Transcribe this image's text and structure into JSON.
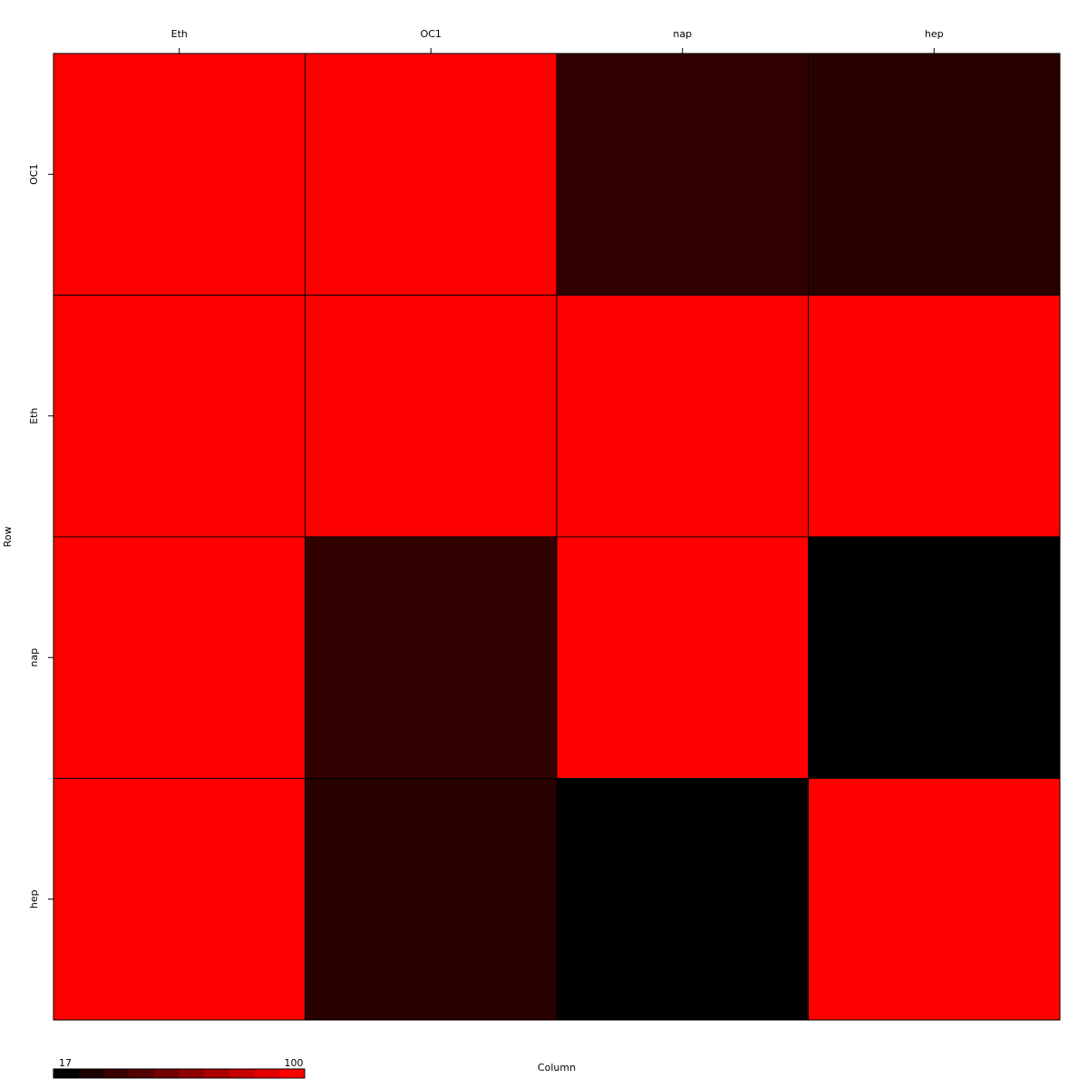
{
  "chart_data": {
    "type": "heatmap",
    "xlabel": "Column",
    "ylabel": "Row",
    "columns": [
      "Eth",
      "OC1",
      "nap",
      "hep"
    ],
    "rows": [
      "OC1",
      "Eth",
      "nap",
      "hep"
    ],
    "values": [
      [
        100,
        100,
        33,
        30
      ],
      [
        100,
        100,
        100,
        100
      ],
      [
        100,
        33,
        100,
        17
      ],
      [
        100,
        30,
        17,
        100
      ]
    ],
    "color_scale": {
      "min": 17,
      "max": 100,
      "min_label": "17",
      "max_label": "100",
      "low_color": "#000000",
      "high_color": "#ff0000",
      "steps": 10
    },
    "grid": true,
    "legend": "bottom-left"
  }
}
